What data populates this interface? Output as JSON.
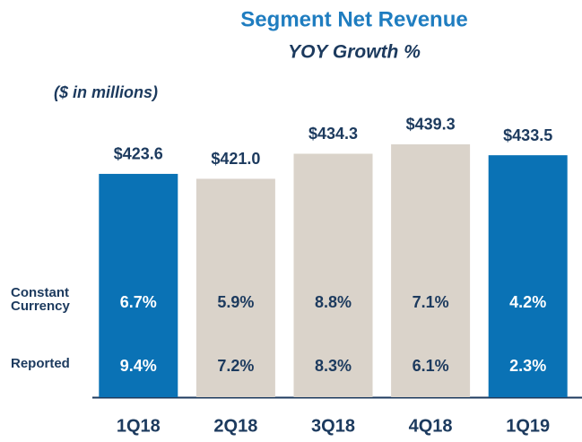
{
  "chart_data": {
    "type": "bar",
    "title": "Segment Net Revenue",
    "subtitle": "YOY Growth %",
    "unit_note": "($ in millions)",
    "categories": [
      "1Q18",
      "2Q18",
      "3Q18",
      "4Q18",
      "1Q19"
    ],
    "values": [
      423.6,
      421.0,
      434.3,
      439.3,
      433.5
    ],
    "value_labels": [
      "$423.6",
      "$421.0",
      "$434.3",
      "$439.3",
      "$433.5"
    ],
    "colors": [
      "#0a72b5",
      "#dad3ca",
      "#dad3ca",
      "#dad3ca",
      "#0a72b5"
    ],
    "text_colors": [
      "#ffffff",
      "#1c3a5e",
      "#1c3a5e",
      "#1c3a5e",
      "#ffffff"
    ],
    "ylim": [
      305,
      455
    ],
    "growth": [
      {
        "name": "Constant Currency",
        "values": [
          6.7,
          5.9,
          8.8,
          7.1,
          4.2
        ],
        "value_labels": [
          "6.7%",
          "5.9%",
          "8.8%",
          "7.1%",
          "4.2%"
        ]
      },
      {
        "name": "Reported",
        "values": [
          9.4,
          7.2,
          8.3,
          6.1,
          2.3
        ],
        "value_labels": [
          "9.4%",
          "7.2%",
          "8.3%",
          "6.1%",
          "2.3%"
        ]
      }
    ]
  }
}
